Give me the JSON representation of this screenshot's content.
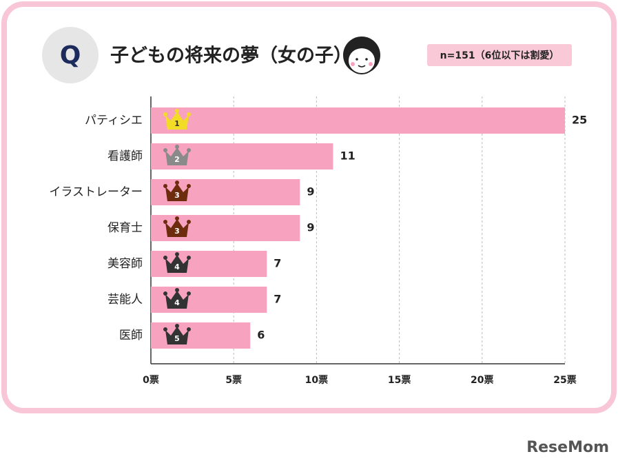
{
  "chart_data": {
    "type": "barh",
    "badge": "Q",
    "title": "子どもの将来の夢（女の子）",
    "note": "n=151（6位以下は割愛）",
    "categories": [
      "パティシエ",
      "看護師",
      "イラストレーター",
      "保育士",
      "美容師",
      "芸能人",
      "医師"
    ],
    "values": [
      25,
      11,
      9,
      9,
      7,
      7,
      6
    ],
    "ranks": [
      1,
      2,
      3,
      3,
      4,
      4,
      5
    ],
    "color": "#f7a3c0",
    "crown_colors": [
      "#f3dc26",
      "#8a8a8a",
      "#6e2c0e",
      "#333333",
      "#333333"
    ],
    "xlim": [
      0,
      25
    ],
    "xticks": [
      {
        "value": 0,
        "label": "0票"
      },
      {
        "value": 5,
        "label": "5票"
      },
      {
        "value": 10,
        "label": "10票"
      },
      {
        "value": 15,
        "label": "15票"
      },
      {
        "value": 20,
        "label": "20票"
      },
      {
        "value": 25,
        "label": "25票"
      }
    ],
    "grid": true,
    "watermark": "ReseMom"
  }
}
